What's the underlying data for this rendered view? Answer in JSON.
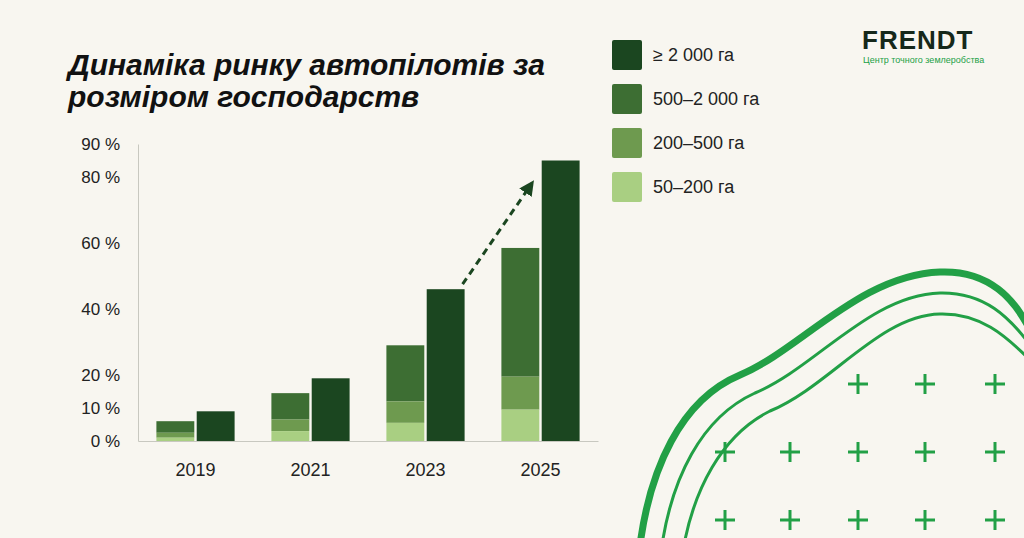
{
  "chart_data": {
    "type": "bar",
    "title": "Динаміка ринку автопілотів за розміром господарств",
    "categories": [
      "2019",
      "2021",
      "2023",
      "2025"
    ],
    "series": [
      {
        "name": "≥ 2 000 га",
        "color": "#1b4620",
        "type": "bar",
        "values": [
          9,
          19,
          46,
          85
        ]
      },
      {
        "name": "500–2 000 га",
        "color": "#3d6e33",
        "type": "stacked_bar",
        "values": [
          3.5,
          8,
          17,
          39
        ]
      },
      {
        "name": "200–500 га",
        "color": "#6e9a4f",
        "type": "stacked_bar",
        "values": [
          1.5,
          3.5,
          6.5,
          10
        ]
      },
      {
        "name": "50–200 га",
        "color": "#a9cf82",
        "type": "stacked_bar",
        "values": [
          1,
          3,
          5.5,
          9.5
        ]
      }
    ],
    "ylim": [
      0,
      90
    ],
    "yticks": [
      {
        "value": 0,
        "label": "0 %"
      },
      {
        "value": 10,
        "label": "10 %"
      },
      {
        "value": 20,
        "label": "20 %"
      },
      {
        "value": 40,
        "label": "40 %"
      },
      {
        "value": 60,
        "label": "60 %"
      },
      {
        "value": 80,
        "label": "80 %"
      },
      {
        "value": 90,
        "label": "90 %"
      }
    ],
    "stacked": true,
    "grid": false,
    "legend": "top-right"
  },
  "logo": {
    "name": "FRENDT",
    "tagline": "Центр точного землеробства"
  }
}
